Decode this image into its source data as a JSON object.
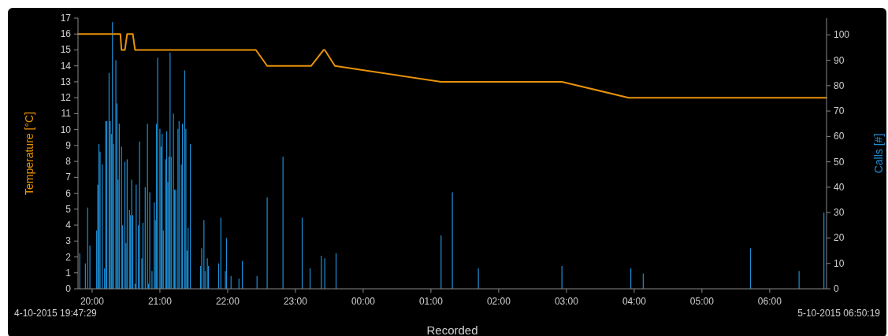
{
  "chart_data": {
    "type": "bar",
    "xlabel": "Recorded",
    "ylabel": "Temperature [°C]",
    "y2label": "Calls [#]",
    "annotations": [
      "4-10-2015 19:47:29",
      "5-10-2015 06:50:19"
    ],
    "xlim": [
      "2015-10-04T19:47:29",
      "2015-10-05T06:50:19"
    ],
    "xticks": [
      {
        "value": "2015-10-04T20:00",
        "label": "20:00"
      },
      {
        "value": "2015-10-04T21:00",
        "label": "21:00"
      },
      {
        "value": "2015-10-04T22:00",
        "label": "22:00"
      },
      {
        "value": "2015-10-04T23:00",
        "label": "23:00"
      },
      {
        "value": "2015-10-05T00:00",
        "label": "00:00"
      },
      {
        "value": "2015-10-05T01:00",
        "label": "01:00"
      },
      {
        "value": "2015-10-05T02:00",
        "label": "02:00"
      },
      {
        "value": "2015-10-05T03:00",
        "label": "03:00"
      },
      {
        "value": "2015-10-05T04:00",
        "label": "04:00"
      },
      {
        "value": "2015-10-05T05:00",
        "label": "05:00"
      },
      {
        "value": "2015-10-05T06:00",
        "label": "06:00"
      }
    ],
    "ylim": [
      0,
      17
    ],
    "yticks": [
      0,
      1,
      2,
      3,
      4,
      5,
      6,
      7,
      8,
      9,
      10,
      11,
      12,
      13,
      14,
      15,
      16,
      17
    ],
    "y2lim": [
      0,
      106.6
    ],
    "y2ticks": [
      0,
      10,
      20,
      30,
      40,
      50,
      60,
      70,
      80,
      90,
      100
    ],
    "series": [
      {
        "axis": "y2",
        "color": "#1f8fd6",
        "x": [
          "2015-10-04T19:49",
          "2015-10-04T19:54",
          "2015-10-04T19:56",
          "2015-10-04T19:58",
          "2015-10-04T20:04",
          "2015-10-04T20:05",
          "2015-10-04T20:06",
          "2015-10-04T20:07",
          "2015-10-04T20:09",
          "2015-10-04T20:11",
          "2015-10-04T20:12",
          "2015-10-04T20:13",
          "2015-10-04T20:15",
          "2015-10-04T20:16",
          "2015-10-04T20:17",
          "2015-10-04T20:18",
          "2015-10-04T20:19",
          "2015-10-04T20:21",
          "2015-10-04T20:22",
          "2015-10-04T20:23",
          "2015-10-04T20:24",
          "2015-10-04T20:26",
          "2015-10-04T20:27",
          "2015-10-04T20:29",
          "2015-10-04T20:30",
          "2015-10-04T20:31",
          "2015-10-04T20:33",
          "2015-10-04T20:34",
          "2015-10-04T20:35",
          "2015-10-04T20:36",
          "2015-10-04T20:38",
          "2015-10-04T20:39",
          "2015-10-04T20:41",
          "2015-10-04T20:42",
          "2015-10-04T20:44",
          "2015-10-04T20:45",
          "2015-10-04T20:47",
          "2015-10-04T20:49",
          "2015-10-04T20:50",
          "2015-10-04T20:51",
          "2015-10-04T20:53",
          "2015-10-04T20:55",
          "2015-10-04T20:56",
          "2015-10-04T20:57",
          "2015-10-04T20:58",
          "2015-10-04T21:00",
          "2015-10-04T21:01",
          "2015-10-04T21:02",
          "2015-10-04T21:03",
          "2015-10-04T21:05",
          "2015-10-04T21:06",
          "2015-10-04T21:07",
          "2015-10-04T21:08",
          "2015-10-04T21:09",
          "2015-10-04T21:10",
          "2015-10-04T21:12",
          "2015-10-04T21:13",
          "2015-10-04T21:14",
          "2015-10-04T21:16",
          "2015-10-04T21:17",
          "2015-10-04T21:19",
          "2015-10-04T21:20",
          "2015-10-04T21:22",
          "2015-10-04T21:23",
          "2015-10-04T21:24",
          "2015-10-04T21:25",
          "2015-10-04T21:27",
          "2015-10-04T21:36",
          "2015-10-04T21:37",
          "2015-10-04T21:39",
          "2015-10-04T21:40",
          "2015-10-04T21:42",
          "2015-10-04T21:43",
          "2015-10-04T21:52",
          "2015-10-04T21:54",
          "2015-10-04T21:58",
          "2015-10-04T21:59",
          "2015-10-04T22:03",
          "2015-10-04T22:10",
          "2015-10-04T22:13",
          "2015-10-04T22:26",
          "2015-10-04T22:35",
          "2015-10-04T22:49",
          "2015-10-04T23:06",
          "2015-10-04T23:13",
          "2015-10-04T23:23",
          "2015-10-04T23:26",
          "2015-10-04T23:36",
          "2015-10-05T01:09",
          "2015-10-05T01:19",
          "2015-10-05T01:42",
          "2015-10-05T02:56",
          "2015-10-05T03:57",
          "2015-10-05T04:08",
          "2015-10-05T05:43",
          "2015-10-05T06:26",
          "2015-10-05T06:48"
        ],
        "values": [
          14,
          10,
          32,
          17,
          23,
          41,
          57,
          54,
          49,
          8,
          66,
          66,
          85,
          66,
          61,
          105,
          57,
          90,
          73,
          43,
          65,
          56,
          25,
          50,
          18,
          51,
          31,
          29,
          43,
          29,
          2,
          41,
          25,
          58,
          12,
          26,
          40,
          65,
          2,
          38,
          7,
          34,
          27,
          65,
          91,
          63,
          56,
          61,
          23,
          51,
          62,
          42,
          52,
          93,
          52,
          69,
          39,
          39,
          63,
          66,
          49,
          65,
          86,
          63,
          15,
          24,
          57,
          9,
          16,
          27,
          7,
          12,
          9,
          10,
          28,
          7,
          20,
          5,
          4,
          11,
          5,
          36,
          52,
          28,
          8,
          13,
          12,
          14,
          21,
          38,
          8,
          9,
          8,
          6,
          16,
          7,
          30
        ]
      },
      {
        "type": "line",
        "color": "#e8920a",
        "x": [
          "2015-10-04T19:47:29",
          "2015-10-04T20:25",
          "2015-10-04T20:26",
          "2015-10-04T20:29",
          "2015-10-04T20:31",
          "2015-10-04T20:36",
          "2015-10-04T20:38",
          "2015-10-04T22:25",
          "2015-10-04T22:35",
          "2015-10-04T23:14",
          "2015-10-04T23:25",
          "2015-10-04T23:26",
          "2015-10-04T23:35",
          "2015-10-05T01:09",
          "2015-10-05T02:56",
          "2015-10-05T03:55",
          "2015-10-05T06:50:19"
        ],
        "values": [
          16,
          16,
          15,
          15,
          16,
          16,
          15,
          15,
          14,
          14,
          15,
          15,
          14,
          13,
          13,
          12,
          12
        ]
      }
    ]
  }
}
